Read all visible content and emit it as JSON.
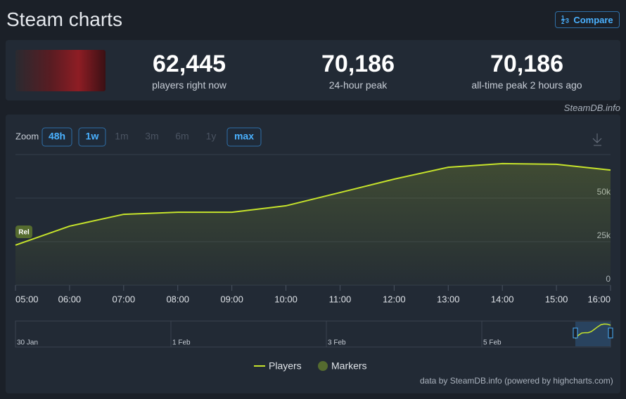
{
  "header": {
    "title": "Steam charts",
    "compare_button": "Compare"
  },
  "stats": [
    {
      "value": "62,445",
      "label": "players right now"
    },
    {
      "value": "70,186",
      "label": "24-hour peak"
    },
    {
      "value": "70,186",
      "label": "all-time peak 2 hours ago"
    }
  ],
  "source": "SteamDB.info",
  "zoom": {
    "label": "Zoom",
    "options": [
      "48h",
      "1w",
      "1m",
      "3m",
      "6m",
      "1y",
      "max"
    ],
    "active": [
      "48h",
      "1w",
      "max"
    ]
  },
  "chart_data": {
    "type": "line",
    "categories": [
      "05:00",
      "06:00",
      "07:00",
      "08:00",
      "09:00",
      "10:00",
      "11:00",
      "12:00",
      "13:00",
      "14:00",
      "15:00",
      "16:00"
    ],
    "series": [
      {
        "name": "Players",
        "color": "#c6e32b",
        "values": [
          23000,
          33900,
          40700,
          41900,
          41900,
          45600,
          53200,
          60900,
          67700,
          69800,
          69400,
          66100
        ]
      }
    ],
    "ylim": [
      0,
      75000
    ],
    "yticks": [
      0,
      {
        "value": 25000,
        "label": "25k"
      },
      {
        "value": 50000,
        "label": "50k"
      }
    ],
    "grid": true,
    "annotation": "Rel",
    "marker_legend": "Markers",
    "navigator_labels": [
      "30 Jan",
      "1 Feb",
      "3 Feb",
      "5 Feb"
    ]
  },
  "credit": "data by SteamDB.info (powered by highcharts.com)"
}
